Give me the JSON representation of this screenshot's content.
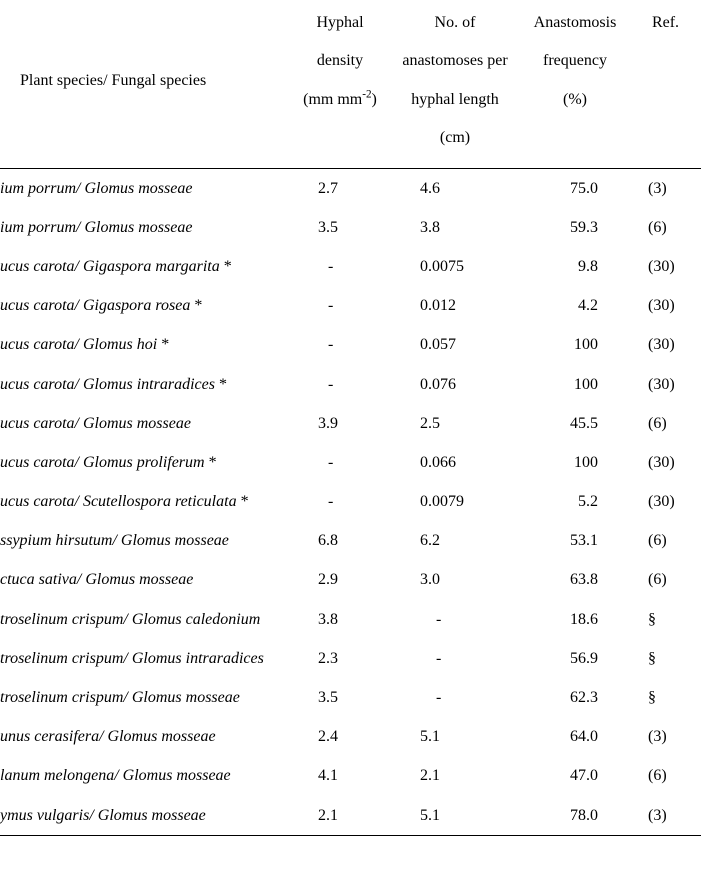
{
  "columns": {
    "species_label": "Plant species/ Fungal species",
    "hyphal_density_l1": "Hyphal",
    "hyphal_density_l2": "density",
    "hyphal_density_l3_pre": "(mm mm",
    "hyphal_density_l3_sup": "-2",
    "hyphal_density_l3_post": ")",
    "anast_per_l1": "No. of",
    "anast_per_l2": "anastomoses per",
    "anast_per_l3": "hyphal length",
    "anast_per_l4": "(cm)",
    "anast_freq_l1": "Anastomosis",
    "anast_freq_l2": "frequency",
    "anast_freq_l3": "(%)",
    "ref_label": "Ref."
  },
  "rows": [
    {
      "species": "ium porrum/ Glomus mosseae",
      "hyphal_density": "2.7",
      "anast_per_cm": "4.6",
      "anast_freq": "75.0",
      "ref": "(3)"
    },
    {
      "species": "ium porrum/ Glomus mosseae",
      "hyphal_density": "3.5",
      "anast_per_cm": "3.8",
      "anast_freq": "59.3",
      "ref": "(6)"
    },
    {
      "species": "ucus carota/ Gigaspora margarita *",
      "hyphal_density": "-",
      "anast_per_cm": "0.0075",
      "anast_freq": "  9.8",
      "ref": "(30)"
    },
    {
      "species": "ucus carota/ Gigaspora rosea *",
      "hyphal_density": "-",
      "anast_per_cm": "0.012",
      "anast_freq": "  4.2",
      "ref": "(30)"
    },
    {
      "species": "ucus carota/ Glomus hoi *",
      "hyphal_density": "-",
      "anast_per_cm": "0.057",
      "anast_freq": "100",
      "ref": "(30)"
    },
    {
      "species": "ucus carota/ Glomus intraradices *",
      "hyphal_density": "-",
      "anast_per_cm": "0.076",
      "anast_freq": "100",
      "ref": "(30)"
    },
    {
      "species": "ucus carota/ Glomus mosseae",
      "hyphal_density": "3.9",
      "anast_per_cm": "2.5",
      "anast_freq": "45.5",
      "ref": "(6)"
    },
    {
      "species": "ucus carota/ Glomus proliferum *",
      "hyphal_density": "-",
      "anast_per_cm": "0.066",
      "anast_freq": "100",
      "ref": "(30)"
    },
    {
      "species": "ucus carota/ Scutellospora reticulata *",
      "hyphal_density": "-",
      "anast_per_cm": "0.0079",
      "anast_freq": "  5.2",
      "ref": "(30)"
    },
    {
      "species": "ssypium hirsutum/ Glomus mosseae",
      "hyphal_density": "6.8",
      "anast_per_cm": "6.2",
      "anast_freq": "53.1",
      "ref": "(6)"
    },
    {
      "species": "ctuca sativa/ Glomus mosseae",
      "hyphal_density": "2.9",
      "anast_per_cm": "3.0",
      "anast_freq": "63.8",
      "ref": "(6)"
    },
    {
      "species": "troselinum crispum/ Glomus caledonium",
      "hyphal_density": "3.8",
      "anast_per_cm": "-",
      "anast_freq": "18.6",
      "ref": "§"
    },
    {
      "species": "troselinum crispum/ Glomus intraradices",
      "hyphal_density": "2.3",
      "anast_per_cm": "-",
      "anast_freq": "56.9",
      "ref": "§"
    },
    {
      "species": "troselinum crispum/ Glomus mosseae",
      "hyphal_density": "3.5",
      "anast_per_cm": "-",
      "anast_freq": "62.3",
      "ref": "§"
    },
    {
      "species": "unus cerasifera/ Glomus mosseae",
      "hyphal_density": "2.4",
      "anast_per_cm": "5.1",
      "anast_freq": "64.0",
      "ref": "(3)"
    },
    {
      "species": "lanum melongena/ Glomus mosseae",
      "hyphal_density": "4.1",
      "anast_per_cm": "2.1",
      "anast_freq": "47.0",
      "ref": "(6)"
    },
    {
      "species": "ymus vulgaris/ Glomus mosseae",
      "hyphal_density": "2.1",
      "anast_per_cm": "5.1",
      "anast_freq": "78.0",
      "ref": "(3)"
    }
  ],
  "col_widths": {
    "species": 290,
    "hyphal_density": 100,
    "anast_per_cm": 130,
    "anast_freq": 110,
    "ref": 71
  }
}
